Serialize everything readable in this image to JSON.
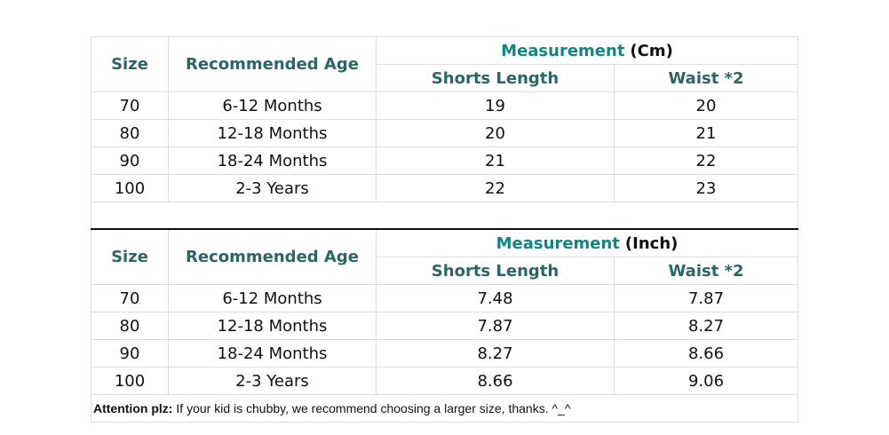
{
  "tables": [
    {
      "header": {
        "size": "Size",
        "age": "Recommended Age",
        "measurement": "Measurement",
        "unit": "(Cm)",
        "shorts": "Shorts Length",
        "waist": "Waist *2"
      },
      "rows": [
        [
          "70",
          "6-12 Months",
          "19",
          "20"
        ],
        [
          "80",
          "12-18 Months",
          "20",
          "21"
        ],
        [
          "90",
          "18-24 Months",
          "21",
          "22"
        ],
        [
          "100",
          "2-3 Years",
          "22",
          "23"
        ]
      ]
    },
    {
      "header": {
        "size": "Size",
        "age": "Recommended Age",
        "measurement": "Measurement",
        "unit": "(Inch)",
        "shorts": "Shorts Length",
        "waist": "Waist *2"
      },
      "rows": [
        [
          "70",
          "6-12 Months",
          "7.48",
          "7.87"
        ],
        [
          "80",
          "12-18 Months",
          "7.87",
          "8.27"
        ],
        [
          "90",
          "18-24 Months",
          "8.27",
          "8.66"
        ],
        [
          "100",
          "2-3 Years",
          "8.66",
          "9.06"
        ]
      ]
    }
  ],
  "note": {
    "label": "Attention plz:",
    "text": "If your kid is chubby, we recommend choosing a larger size, thanks. ^_^"
  }
}
